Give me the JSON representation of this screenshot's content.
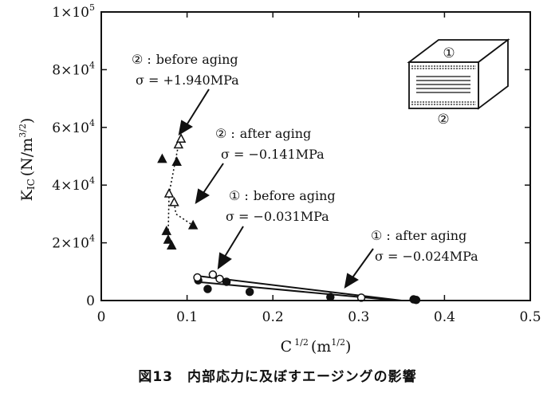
{
  "chart_data": {
    "type": "scatter",
    "xlabel": "C",
    "xlabel_sup": "1/2",
    "xlabel_unit": "(m",
    "xlabel_unit_sup": "1/2",
    "xlabel_close": ")",
    "ylabel": "K",
    "ylabel_sub": "IC",
    "ylabel_unit": "(N/m",
    "ylabel_unit_sup": "3/2",
    "ylabel_close": ")",
    "xlim": [
      0,
      0.5
    ],
    "ylim": [
      0,
      100000
    ],
    "xticks": [
      0,
      0.1,
      0.2,
      0.3,
      0.4,
      0.5
    ],
    "xtick_labels": [
      "0",
      "0.1",
      "0.2",
      "0.3",
      "0.4",
      "0.5"
    ],
    "yticks": [
      0,
      20000,
      40000,
      60000,
      80000,
      100000
    ],
    "ytick_labels": [
      {
        "mant": "0",
        "exp": ""
      },
      {
        "mant": "2×10",
        "exp": "4"
      },
      {
        "mant": "4×10",
        "exp": "4"
      },
      {
        "mant": "6×10",
        "exp": "4"
      },
      {
        "mant": "8×10",
        "exp": "4"
      },
      {
        "mant": "1×10",
        "exp": "5"
      }
    ],
    "series": [
      {
        "marker": "filled-triangle",
        "points": [
          [
            0.071,
            49000
          ],
          [
            0.076,
            24000
          ],
          [
            0.078,
            21000
          ],
          [
            0.082,
            19000
          ],
          [
            0.088,
            48000
          ],
          [
            0.107,
            26000
          ]
        ]
      },
      {
        "marker": "open-triangle",
        "points": [
          [
            0.079,
            37000
          ],
          [
            0.085,
            34000
          ],
          [
            0.09,
            54000
          ],
          [
            0.093,
            56000
          ]
        ]
      },
      {
        "marker": "filled-circle",
        "points": [
          [
            0.113,
            7000
          ],
          [
            0.124,
            4000
          ],
          [
            0.146,
            6500
          ],
          [
            0.173,
            3000
          ],
          [
            0.267,
            1200
          ],
          [
            0.364,
            400
          ],
          [
            0.367,
            200
          ]
        ]
      },
      {
        "marker": "open-circle",
        "points": [
          [
            0.112,
            8000
          ],
          [
            0.13,
            9000
          ],
          [
            0.138,
            7500
          ],
          [
            0.303,
            1000
          ]
        ]
      }
    ],
    "dotted_connectors": [
      [
        [
          0.078,
          23000
        ],
        [
          0.079,
          37000
        ],
        [
          0.09,
          54000
        ]
      ],
      [
        [
          0.085,
          34000
        ],
        [
          0.087,
          30000
        ],
        [
          0.107,
          26000
        ]
      ]
    ],
    "fit_lines": [
      [
        [
          0.11,
          6500
        ],
        [
          0.345,
          0
        ]
      ],
      [
        [
          0.11,
          8600
        ],
        [
          0.35,
          0
        ]
      ]
    ],
    "annotations": [
      {
        "num": "②",
        "text": "before aging",
        "sigma": "σ = +1.940MPa"
      },
      {
        "num": "②",
        "text": "after aging",
        "sigma": "σ = −0.141MPa"
      },
      {
        "num": "①",
        "text": "before aging",
        "sigma": "σ = −0.031MPa"
      },
      {
        "num": "①",
        "text": "after aging",
        "sigma": "σ = −0.024MPa"
      }
    ],
    "inset": {
      "top_label": "①",
      "bottom_label": "②"
    }
  },
  "caption": "図13　内部応力に及ぼすエージングの影響"
}
